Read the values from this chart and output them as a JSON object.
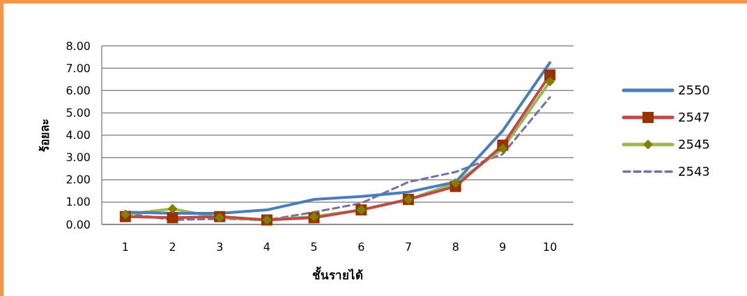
{
  "chart_data": {
    "type": "line",
    "xlabel": "ชั้นรายได้",
    "ylabel": "ร้อยละ",
    "categories": [
      "1",
      "2",
      "3",
      "4",
      "5",
      "6",
      "7",
      "8",
      "9",
      "10"
    ],
    "series": [
      {
        "name": "2550",
        "color": "#4a7ebb",
        "marker": "none",
        "line_style": "solid",
        "values": [
          0.55,
          0.5,
          0.5,
          0.65,
          1.12,
          1.25,
          1.45,
          1.9,
          4.2,
          7.25
        ]
      },
      {
        "name": "2547",
        "color": "#be4b48",
        "marker": "square",
        "line_style": "solid",
        "values": [
          0.35,
          0.3,
          0.35,
          0.2,
          0.3,
          0.65,
          1.12,
          1.7,
          3.55,
          6.7
        ]
      },
      {
        "name": "2545",
        "color": "#98b954",
        "marker": "diamond",
        "line_style": "solid",
        "values": [
          0.45,
          0.7,
          0.3,
          0.2,
          0.35,
          0.65,
          1.12,
          1.85,
          3.4,
          6.4
        ]
      },
      {
        "name": "2543",
        "color": "#7470a8",
        "marker": "none",
        "line_style": "dashed",
        "values": [
          0.5,
          0.2,
          0.25,
          0.2,
          0.55,
          0.95,
          1.9,
          2.35,
          3.15,
          5.7
        ]
      }
    ],
    "ylim": [
      0,
      8
    ],
    "yticks": [
      {
        "value": 0,
        "label": "0.00"
      },
      {
        "value": 1,
        "label": "1.00"
      },
      {
        "value": 2,
        "label": "2.00"
      },
      {
        "value": 3,
        "label": "3.00"
      },
      {
        "value": 4,
        "label": "4.00"
      },
      {
        "value": 5,
        "label": "5.00"
      },
      {
        "value": 6,
        "label": "6.00"
      },
      {
        "value": 7,
        "label": "7.00"
      },
      {
        "value": 8,
        "label": "8.00"
      }
    ],
    "grid": "y",
    "legend": "right"
  }
}
